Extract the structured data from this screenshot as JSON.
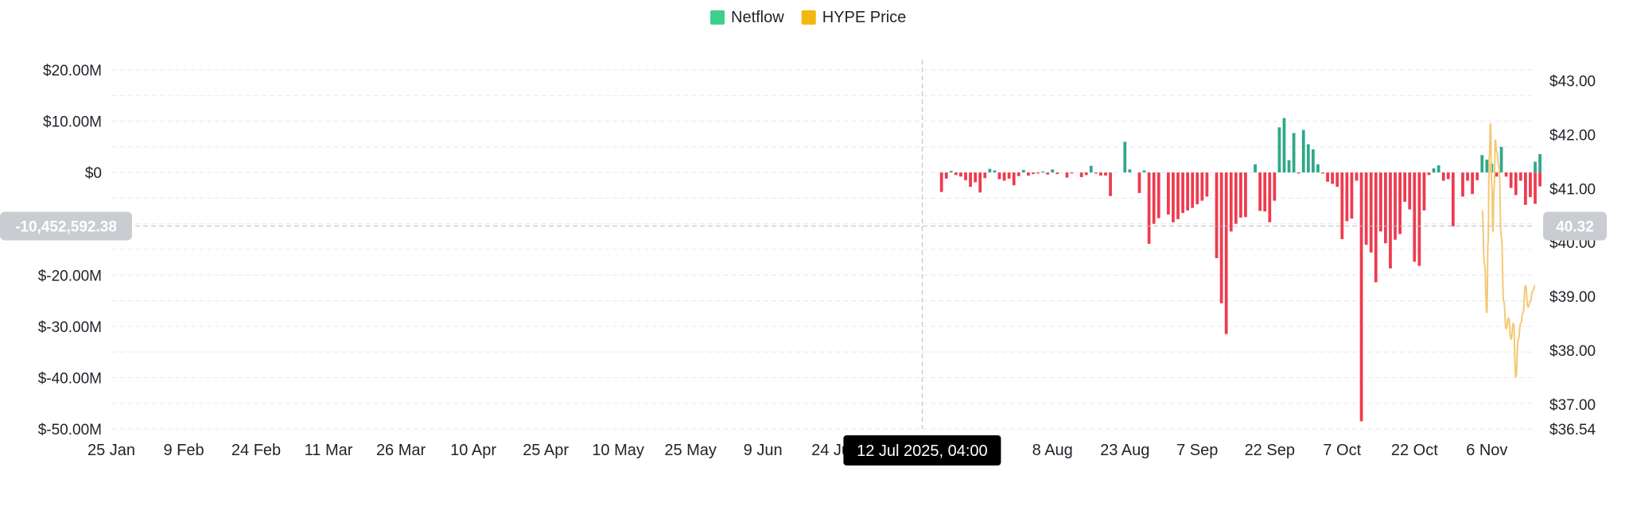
{
  "chart_data": {
    "type": "bar",
    "legend": [
      {
        "name": "Netflow",
        "color": "#3ecf8e"
      },
      {
        "name": "HYPE Price",
        "color": "#f0b90b"
      }
    ],
    "legend_position": "top-center",
    "colors": {
      "positive": "#2fa88a",
      "negative": "#ee3b4f",
      "price_line": "#f3c976",
      "grid": "#e6e8ea",
      "crosshair_label_bg": "#c9ccd1",
      "tooltip_bg": "#000000"
    },
    "grid": true,
    "x_axis": {
      "range": [
        "2025-01-25",
        "2025-11-16"
      ],
      "ticks": [
        "25 Jan",
        "9 Feb",
        "24 Feb",
        "11 Mar",
        "26 Mar",
        "10 Apr",
        "25 Apr",
        "10 May",
        "25 May",
        "9 Jun",
        "24 Jun",
        "8 Aug",
        "23 Aug",
        "7 Sep",
        "22 Sep",
        "7 Oct",
        "22 Oct",
        "6 Nov"
      ],
      "tick_dates": [
        "2025-01-25",
        "2025-02-09",
        "2025-02-24",
        "2025-03-11",
        "2025-03-26",
        "2025-04-10",
        "2025-04-25",
        "2025-05-10",
        "2025-05-25",
        "2025-06-09",
        "2025-06-24",
        "2025-08-08",
        "2025-08-23",
        "2025-09-07",
        "2025-09-22",
        "2025-10-07",
        "2025-10-22",
        "2025-11-06"
      ]
    },
    "y_left": {
      "range": [
        -50000000,
        20000000
      ],
      "ticks": [
        {
          "label": "$20.00M",
          "value": 20000000
        },
        {
          "label": "$10.00M",
          "value": 10000000
        },
        {
          "label": "$0",
          "value": 0
        },
        {
          "label": "$-20.00M",
          "value": -20000000
        },
        {
          "label": "$-30.00M",
          "value": -30000000
        },
        {
          "label": "$-40.00M",
          "value": -40000000
        },
        {
          "label": "$-50.00M",
          "value": -50000000
        }
      ]
    },
    "y_right": {
      "range": [
        36.54,
        43.2
      ],
      "ticks": [
        {
          "label": "$43.00",
          "value": 43
        },
        {
          "label": "$42.00",
          "value": 42
        },
        {
          "label": "$41.00",
          "value": 41
        },
        {
          "label": "$40.00",
          "value": 40
        },
        {
          "label": "$39.00",
          "value": 39
        },
        {
          "label": "$38.00",
          "value": 38
        },
        {
          "label": "$37.00",
          "value": 37
        },
        {
          "label": "$36.54",
          "value": 36.54
        }
      ]
    },
    "crosshair": {
      "date": "2025-07-12",
      "x_label": "12 Jul 2025, 04:00",
      "left_value": -10452592.38,
      "left_label": "-10,452,592.38",
      "right_label": "40.32"
    },
    "series": [
      {
        "name": "Netflow",
        "type": "bar",
        "points": [
          {
            "x": "2025-07-16",
            "y": -3800000
          },
          {
            "x": "2025-07-17",
            "y": -1200000
          },
          {
            "x": "2025-07-18",
            "y": 300000
          },
          {
            "x": "2025-07-19",
            "y": -500000
          },
          {
            "x": "2025-07-20",
            "y": -800000
          },
          {
            "x": "2025-07-21",
            "y": -1500000
          },
          {
            "x": "2025-07-22",
            "y": -2800000
          },
          {
            "x": "2025-07-23",
            "y": -1900000
          },
          {
            "x": "2025-07-24",
            "y": -3900000
          },
          {
            "x": "2025-07-25",
            "y": -1100000
          },
          {
            "x": "2025-07-26",
            "y": 700000
          },
          {
            "x": "2025-07-27",
            "y": 400000
          },
          {
            "x": "2025-07-28",
            "y": -1300000
          },
          {
            "x": "2025-07-29",
            "y": -1600000
          },
          {
            "x": "2025-07-30",
            "y": -1200000
          },
          {
            "x": "2025-07-31",
            "y": -2500000
          },
          {
            "x": "2025-08-01",
            "y": -700000
          },
          {
            "x": "2025-08-02",
            "y": 500000
          },
          {
            "x": "2025-08-03",
            "y": -600000
          },
          {
            "x": "2025-08-04",
            "y": -300000
          },
          {
            "x": "2025-08-05",
            "y": -200000
          },
          {
            "x": "2025-08-06",
            "y": 200000
          },
          {
            "x": "2025-08-07",
            "y": -400000
          },
          {
            "x": "2025-08-08",
            "y": 600000
          },
          {
            "x": "2025-08-09",
            "y": -300000
          },
          {
            "x": "2025-08-11",
            "y": -1000000
          },
          {
            "x": "2025-08-12",
            "y": -200000
          },
          {
            "x": "2025-08-14",
            "y": -900000
          },
          {
            "x": "2025-08-15",
            "y": -500000
          },
          {
            "x": "2025-08-16",
            "y": 1300000
          },
          {
            "x": "2025-08-17",
            "y": -200000
          },
          {
            "x": "2025-08-18",
            "y": -600000
          },
          {
            "x": "2025-08-19",
            "y": -600000
          },
          {
            "x": "2025-08-20",
            "y": -4600000
          },
          {
            "x": "2025-08-23",
            "y": 6000000
          },
          {
            "x": "2025-08-24",
            "y": 600000
          },
          {
            "x": "2025-08-26",
            "y": -4000000
          },
          {
            "x": "2025-08-27",
            "y": 400000
          },
          {
            "x": "2025-08-28",
            "y": -13900000
          },
          {
            "x": "2025-08-29",
            "y": -10000000
          },
          {
            "x": "2025-08-30",
            "y": -8900000
          },
          {
            "x": "2025-09-01",
            "y": -8200000
          },
          {
            "x": "2025-09-02",
            "y": -9700000
          },
          {
            "x": "2025-09-03",
            "y": -9100000
          },
          {
            "x": "2025-09-04",
            "y": -7900000
          },
          {
            "x": "2025-09-05",
            "y": -7400000
          },
          {
            "x": "2025-09-06",
            "y": -6900000
          },
          {
            "x": "2025-09-07",
            "y": -6200000
          },
          {
            "x": "2025-09-08",
            "y": -5500000
          },
          {
            "x": "2025-09-09",
            "y": -4700000
          },
          {
            "x": "2025-09-11",
            "y": -16700000
          },
          {
            "x": "2025-09-12",
            "y": -25500000
          },
          {
            "x": "2025-09-13",
            "y": -31500000
          },
          {
            "x": "2025-09-14",
            "y": -11500000
          },
          {
            "x": "2025-09-15",
            "y": -10000000
          },
          {
            "x": "2025-09-16",
            "y": -8800000
          },
          {
            "x": "2025-09-17",
            "y": -8700000
          },
          {
            "x": "2025-09-19",
            "y": 1600000
          },
          {
            "x": "2025-09-20",
            "y": -7500000
          },
          {
            "x": "2025-09-21",
            "y": -7600000
          },
          {
            "x": "2025-09-22",
            "y": -9700000
          },
          {
            "x": "2025-09-23",
            "y": -5500000
          },
          {
            "x": "2025-09-24",
            "y": 8800000
          },
          {
            "x": "2025-09-25",
            "y": 10600000
          },
          {
            "x": "2025-09-26",
            "y": 2400000
          },
          {
            "x": "2025-09-27",
            "y": 7700000
          },
          {
            "x": "2025-09-28",
            "y": -200000
          },
          {
            "x": "2025-09-29",
            "y": 8300000
          },
          {
            "x": "2025-09-30",
            "y": 5500000
          },
          {
            "x": "2025-10-01",
            "y": 4500000
          },
          {
            "x": "2025-10-02",
            "y": 1600000
          },
          {
            "x": "2025-10-03",
            "y": -200000
          },
          {
            "x": "2025-10-04",
            "y": -1800000
          },
          {
            "x": "2025-10-05",
            "y": -2200000
          },
          {
            "x": "2025-10-06",
            "y": -2800000
          },
          {
            "x": "2025-10-07",
            "y": -13000000
          },
          {
            "x": "2025-10-08",
            "y": -9500000
          },
          {
            "x": "2025-10-09",
            "y": -9000000
          },
          {
            "x": "2025-10-10",
            "y": -1600000
          },
          {
            "x": "2025-10-11",
            "y": -48500000
          },
          {
            "x": "2025-10-12",
            "y": -14100000
          },
          {
            "x": "2025-10-13",
            "y": -15600000
          },
          {
            "x": "2025-10-14",
            "y": -21400000
          },
          {
            "x": "2025-10-15",
            "y": -11500000
          },
          {
            "x": "2025-10-16",
            "y": -13800000
          },
          {
            "x": "2025-10-17",
            "y": -18700000
          },
          {
            "x": "2025-10-18",
            "y": -13100000
          },
          {
            "x": "2025-10-19",
            "y": -12000000
          },
          {
            "x": "2025-10-20",
            "y": -5700000
          },
          {
            "x": "2025-10-21",
            "y": -7200000
          },
          {
            "x": "2025-10-22",
            "y": -17400000
          },
          {
            "x": "2025-10-23",
            "y": -18200000
          },
          {
            "x": "2025-10-24",
            "y": -7400000
          },
          {
            "x": "2025-10-25",
            "y": -500000
          },
          {
            "x": "2025-10-26",
            "y": 800000
          },
          {
            "x": "2025-10-27",
            "y": 1400000
          },
          {
            "x": "2025-10-28",
            "y": -1600000
          },
          {
            "x": "2025-10-29",
            "y": -1300000
          },
          {
            "x": "2025-10-30",
            "y": -10500000
          },
          {
            "x": "2025-11-01",
            "y": -4700000
          },
          {
            "x": "2025-11-02",
            "y": -1600000
          },
          {
            "x": "2025-11-03",
            "y": -4200000
          },
          {
            "x": "2025-11-04",
            "y": -1500000
          },
          {
            "x": "2025-11-05",
            "y": 3400000
          },
          {
            "x": "2025-11-06",
            "y": 2500000
          },
          {
            "x": "2025-11-07",
            "y": 1700000
          },
          {
            "x": "2025-11-08",
            "y": -800000
          },
          {
            "x": "2025-11-09",
            "y": 5000000
          },
          {
            "x": "2025-11-10",
            "y": -800000
          },
          {
            "x": "2025-11-11",
            "y": -3000000
          },
          {
            "x": "2025-11-12",
            "y": -4400000
          },
          {
            "x": "2025-11-13",
            "y": -1600000
          },
          {
            "x": "2025-11-14",
            "y": -6300000
          },
          {
            "x": "2025-11-15",
            "y": -4800000
          },
          {
            "x": "2025-11-16",
            "y": -6100000
          },
          {
            "x": "2025-11-17",
            "y": -2700000
          },
          {
            "x": "2025-11-16",
            "y": 2100000
          },
          {
            "x": "2025-11-17",
            "y": 3600000
          }
        ]
      },
      {
        "name": "HYPE Price",
        "type": "line",
        "points": [
          {
            "x": "2025-11-05 00:00",
            "y": 40.6
          },
          {
            "x": "2025-11-05 12:00",
            "y": 39.6
          },
          {
            "x": "2025-11-06 00:00",
            "y": 38.7
          },
          {
            "x": "2025-11-06 06:00",
            "y": 40.0
          },
          {
            "x": "2025-11-06 12:00",
            "y": 41.6
          },
          {
            "x": "2025-11-06 18:00",
            "y": 42.2
          },
          {
            "x": "2025-11-07 00:00",
            "y": 41.1
          },
          {
            "x": "2025-11-07 06:00",
            "y": 40.2
          },
          {
            "x": "2025-11-07 12:00",
            "y": 41.0
          },
          {
            "x": "2025-11-07 18:00",
            "y": 41.9
          },
          {
            "x": "2025-11-08 00:00",
            "y": 41.7
          },
          {
            "x": "2025-11-08 12:00",
            "y": 41.4
          },
          {
            "x": "2025-11-09 00:00",
            "y": 40.1
          },
          {
            "x": "2025-11-09 12:00",
            "y": 38.9
          },
          {
            "x": "2025-11-10 00:00",
            "y": 38.4
          },
          {
            "x": "2025-11-10 12:00",
            "y": 38.6
          },
          {
            "x": "2025-11-11 00:00",
            "y": 38.2
          },
          {
            "x": "2025-11-11 12:00",
            "y": 38.5
          },
          {
            "x": "2025-11-12 00:00",
            "y": 37.5
          },
          {
            "x": "2025-11-12 12:00",
            "y": 38.2
          },
          {
            "x": "2025-11-13 00:00",
            "y": 38.5
          },
          {
            "x": "2025-11-13 12:00",
            "y": 38.7
          },
          {
            "x": "2025-11-14 00:00",
            "y": 39.2
          },
          {
            "x": "2025-11-14 12:00",
            "y": 38.8
          },
          {
            "x": "2025-11-15 00:00",
            "y": 38.9
          },
          {
            "x": "2025-11-15 12:00",
            "y": 39.1
          },
          {
            "x": "2025-11-16 00:00",
            "y": 39.2
          }
        ]
      }
    ]
  }
}
